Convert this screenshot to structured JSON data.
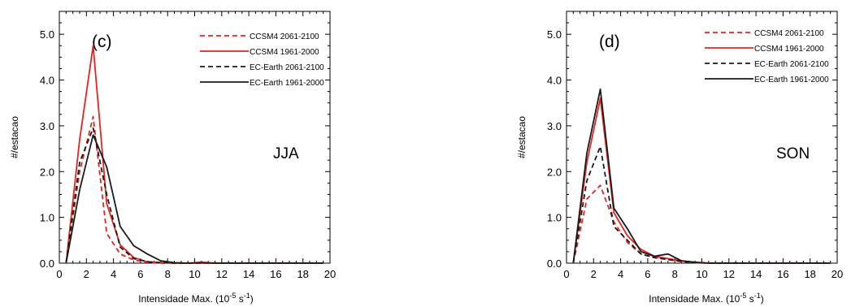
{
  "chart_data": [
    {
      "type": "line",
      "panel_label": "(c)",
      "season": "JJA",
      "xlabel_main": "Intensidade Max. (10",
      "xlabel_exp1": "-5",
      "xlabel_mid": " s",
      "xlabel_exp2": "-1",
      "xlabel_end": ")",
      "ylabel": "#/estacao",
      "xlim": [
        0,
        20
      ],
      "ylim": [
        0,
        5.5
      ],
      "xticks": [
        "0",
        "2",
        "4",
        "6",
        "8",
        "10",
        "12",
        "14",
        "16",
        "18",
        "20"
      ],
      "yticks": [
        "0.0",
        "1.0",
        "2.0",
        "3.0",
        "4.0",
        "5.0"
      ],
      "legend_position": "top-right",
      "grid": false,
      "series": [
        {
          "name": "CCSM4 2061-2100",
          "color": "#e8231f",
          "dash": true,
          "x": [
            0.5,
            1.5,
            2.5,
            3.5,
            4.5,
            5.5,
            6.5,
            7.5,
            8.5,
            9.5,
            10.5,
            11.5,
            12.5,
            13.5,
            14.5,
            15.5,
            16.5,
            17.5,
            18.5,
            19.5
          ],
          "values": [
            0.0,
            2.0,
            3.2,
            0.65,
            0.2,
            0.07,
            0.02,
            0.0,
            0.0,
            0.0,
            0.0,
            0.0,
            0.0,
            0.0,
            0.0,
            0.0,
            0.0,
            0.0,
            0.0,
            0.0
          ]
        },
        {
          "name": "CCSM4 1961-2000",
          "color": "#e8231f",
          "dash": false,
          "x": [
            0.5,
            1.5,
            2.5,
            3.5,
            4.5,
            5.5,
            6.5,
            7.5,
            8.5,
            9.5,
            10.5,
            11.5,
            12.5,
            13.5,
            14.5,
            15.5,
            16.5,
            17.5,
            18.5,
            19.5
          ],
          "values": [
            0.0,
            2.7,
            4.75,
            1.3,
            0.4,
            0.12,
            0.03,
            0.01,
            0.0,
            0.0,
            0.02,
            0.0,
            0.0,
            0.0,
            0.0,
            0.0,
            0.0,
            0.0,
            0.0,
            0.0
          ]
        },
        {
          "name": "EC-Earth 2061-2100",
          "color": "#1a1a1a",
          "dash": true,
          "x": [
            0.5,
            1.5,
            2.5,
            3.5,
            4.5,
            5.5,
            6.5,
            7.5,
            8.5,
            9.5,
            10.5,
            11.5,
            12.5,
            13.5,
            14.5,
            15.5,
            16.5,
            17.5,
            18.5,
            19.5
          ],
          "values": [
            0.0,
            2.2,
            2.95,
            1.5,
            0.35,
            0.1,
            0.03,
            0.01,
            0.0,
            0.0,
            0.0,
            0.0,
            0.0,
            0.0,
            0.0,
            0.0,
            0.0,
            0.0,
            0.0,
            0.0
          ]
        },
        {
          "name": "EC-Earth 1961-2000",
          "color": "#1a1a1a",
          "dash": false,
          "x": [
            0.5,
            1.5,
            2.5,
            3.5,
            4.5,
            5.5,
            6.5,
            7.5,
            8.5,
            9.5,
            10.5,
            11.5,
            12.5,
            13.5,
            14.5,
            15.5,
            16.5,
            17.5,
            18.5,
            19.5
          ],
          "values": [
            0.0,
            1.6,
            2.8,
            2.1,
            0.8,
            0.38,
            0.2,
            0.05,
            0.01,
            0.0,
            0.01,
            0.0,
            0.0,
            0.0,
            0.0,
            0.0,
            0.0,
            0.0,
            0.0,
            0.0
          ]
        }
      ]
    },
    {
      "type": "line",
      "panel_label": "(d)",
      "season": "SON",
      "xlabel_main": "Intensidade Max. (10",
      "xlabel_exp1": "-5",
      "xlabel_mid": " s",
      "xlabel_exp2": "-1",
      "xlabel_end": ")",
      "ylabel": "#/estacao",
      "xlim": [
        0,
        20
      ],
      "ylim": [
        0,
        5.5
      ],
      "xticks": [
        "0",
        "2",
        "4",
        "6",
        "8",
        "10",
        "12",
        "14",
        "16",
        "18",
        "20"
      ],
      "yticks": [
        "0.0",
        "1.0",
        "2.0",
        "3.0",
        "4.0",
        "5.0"
      ],
      "legend_position": "top-right",
      "grid": false,
      "series": [
        {
          "name": "CCSM4 2061-2100",
          "color": "#e8231f",
          "dash": true,
          "x": [
            0.5,
            1.5,
            2.5,
            3.5,
            4.5,
            5.5,
            6.5,
            7.5,
            8.5,
            9.5,
            10.5,
            11.5,
            12.5,
            13.5,
            14.5,
            15.5,
            16.5,
            17.5,
            18.5,
            19.5
          ],
          "values": [
            0.0,
            1.4,
            1.7,
            0.9,
            0.45,
            0.2,
            0.12,
            0.08,
            0.03,
            0.01,
            0.0,
            0.0,
            0.0,
            0.0,
            0.0,
            0.0,
            0.0,
            0.0,
            0.0,
            0.0
          ]
        },
        {
          "name": "CCSM4 1961-2000",
          "color": "#e8231f",
          "dash": false,
          "x": [
            0.5,
            1.5,
            2.5,
            3.5,
            4.5,
            5.5,
            6.5,
            7.5,
            8.5,
            9.5,
            10.5,
            11.5,
            12.5,
            13.5,
            14.5,
            15.5,
            16.5,
            17.5,
            18.5,
            19.5
          ],
          "values": [
            0.0,
            2.2,
            3.6,
            1.1,
            0.6,
            0.3,
            0.15,
            0.1,
            0.05,
            0.02,
            0.0,
            0.0,
            0.0,
            0.0,
            0.0,
            0.0,
            0.0,
            0.0,
            0.0,
            0.0
          ]
        },
        {
          "name": "EC-Earth 2061-2100",
          "color": "#1a1a1a",
          "dash": true,
          "x": [
            0.5,
            1.5,
            2.5,
            3.5,
            4.5,
            5.5,
            6.5,
            7.5,
            8.5,
            9.5,
            10.5,
            11.5,
            12.5,
            13.5,
            14.5,
            15.5,
            16.5,
            17.5,
            18.5,
            19.5
          ],
          "values": [
            0.0,
            1.8,
            2.55,
            0.8,
            0.5,
            0.2,
            0.12,
            0.08,
            0.04,
            0.01,
            0.0,
            0.0,
            0.0,
            0.0,
            0.0,
            0.0,
            0.0,
            0.0,
            0.0,
            0.0
          ]
        },
        {
          "name": "EC-Earth 1961-2000",
          "color": "#1a1a1a",
          "dash": false,
          "x": [
            0.5,
            1.5,
            2.5,
            3.5,
            4.5,
            5.5,
            6.5,
            7.5,
            8.5,
            9.5,
            10.5,
            11.5,
            12.5,
            13.5,
            14.5,
            15.5,
            16.5,
            17.5,
            18.5,
            19.5
          ],
          "values": [
            0.0,
            2.4,
            3.8,
            1.2,
            0.75,
            0.25,
            0.15,
            0.2,
            0.05,
            0.02,
            0.0,
            0.0,
            0.0,
            0.0,
            0.0,
            0.0,
            0.0,
            0.0,
            0.0,
            0.0
          ]
        }
      ]
    }
  ]
}
